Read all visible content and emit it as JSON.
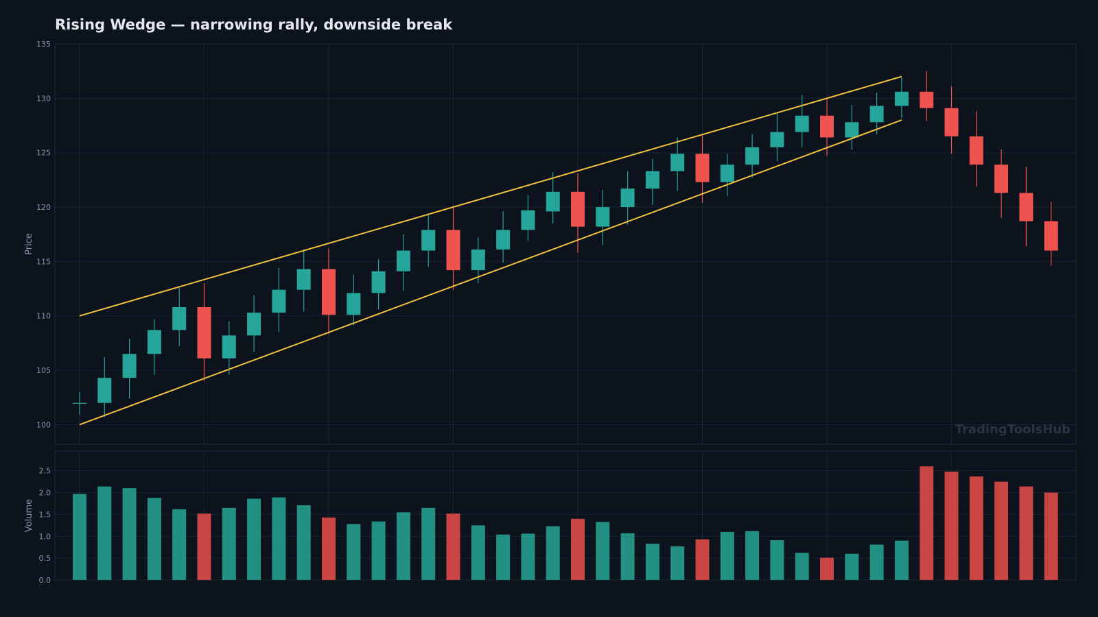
{
  "title": "Rising Wedge — narrowing rally, downside break",
  "watermark": "TradingToolsHub",
  "colors": {
    "background": "#0d131d",
    "bull": "#26a69a",
    "bear": "#ef5350",
    "bull_volume": "#229184",
    "bear_volume": "#c94543",
    "wedge": "#f0c040",
    "grid": "#1a2430",
    "axis_text": "#8b95a2"
  },
  "chart_data": [
    {
      "type": "candlestick",
      "ylabel": "Price",
      "ylim": [
        98.2,
        135
      ],
      "yticks": [
        100,
        105,
        110,
        115,
        120,
        125,
        130,
        135
      ],
      "grid": true,
      "candles": [
        {
          "o": 102.0,
          "h": 103.0,
          "l": 100.9,
          "c": 102.0
        },
        {
          "o": 102.0,
          "h": 106.2,
          "l": 100.7,
          "c": 104.3
        },
        {
          "o": 104.3,
          "h": 107.9,
          "l": 102.4,
          "c": 106.5
        },
        {
          "o": 106.5,
          "h": 109.7,
          "l": 104.6,
          "c": 108.7
        },
        {
          "o": 108.7,
          "h": 112.6,
          "l": 107.2,
          "c": 110.8
        },
        {
          "o": 110.8,
          "h": 113.0,
          "l": 104.0,
          "c": 106.1
        },
        {
          "o": 106.1,
          "h": 109.5,
          "l": 104.6,
          "c": 108.2
        },
        {
          "o": 108.2,
          "h": 111.9,
          "l": 106.7,
          "c": 110.3
        },
        {
          "o": 110.3,
          "h": 114.4,
          "l": 108.5,
          "c": 112.4
        },
        {
          "o": 112.4,
          "h": 116.1,
          "l": 110.4,
          "c": 114.3
        },
        {
          "o": 114.3,
          "h": 116.2,
          "l": 108.3,
          "c": 110.1
        },
        {
          "o": 110.1,
          "h": 113.8,
          "l": 109.1,
          "c": 112.1
        },
        {
          "o": 112.1,
          "h": 115.2,
          "l": 110.6,
          "c": 114.1
        },
        {
          "o": 114.1,
          "h": 117.5,
          "l": 112.3,
          "c": 116.0
        },
        {
          "o": 116.0,
          "h": 119.4,
          "l": 114.5,
          "c": 117.9
        },
        {
          "o": 117.9,
          "h": 120.1,
          "l": 112.4,
          "c": 114.2
        },
        {
          "o": 114.2,
          "h": 117.2,
          "l": 113.0,
          "c": 116.1
        },
        {
          "o": 116.1,
          "h": 119.6,
          "l": 114.9,
          "c": 117.9
        },
        {
          "o": 117.9,
          "h": 121.1,
          "l": 116.9,
          "c": 119.7
        },
        {
          "o": 119.6,
          "h": 123.2,
          "l": 118.5,
          "c": 121.4
        },
        {
          "o": 121.4,
          "h": 123.1,
          "l": 115.8,
          "c": 118.2
        },
        {
          "o": 118.2,
          "h": 121.6,
          "l": 116.5,
          "c": 120.0
        },
        {
          "o": 120.0,
          "h": 123.3,
          "l": 118.4,
          "c": 121.7
        },
        {
          "o": 121.7,
          "h": 124.4,
          "l": 120.2,
          "c": 123.3
        },
        {
          "o": 123.3,
          "h": 126.4,
          "l": 121.5,
          "c": 124.9
        },
        {
          "o": 124.9,
          "h": 126.6,
          "l": 120.4,
          "c": 122.3
        },
        {
          "o": 122.3,
          "h": 124.9,
          "l": 121.0,
          "c": 123.9
        },
        {
          "o": 123.9,
          "h": 126.7,
          "l": 122.7,
          "c": 125.5
        },
        {
          "o": 125.5,
          "h": 128.6,
          "l": 124.2,
          "c": 126.9
        },
        {
          "o": 126.9,
          "h": 130.3,
          "l": 125.5,
          "c": 128.4
        },
        {
          "o": 128.4,
          "h": 130.1,
          "l": 124.7,
          "c": 126.4
        },
        {
          "o": 126.4,
          "h": 129.4,
          "l": 125.3,
          "c": 127.8
        },
        {
          "o": 127.8,
          "h": 130.5,
          "l": 126.7,
          "c": 129.3
        },
        {
          "o": 129.3,
          "h": 131.9,
          "l": 128.2,
          "c": 130.6
        },
        {
          "o": 130.6,
          "h": 132.5,
          "l": 127.9,
          "c": 129.1
        },
        {
          "o": 129.1,
          "h": 131.1,
          "l": 124.9,
          "c": 126.5
        },
        {
          "o": 126.5,
          "h": 128.8,
          "l": 121.9,
          "c": 123.9
        },
        {
          "o": 123.9,
          "h": 125.3,
          "l": 119.0,
          "c": 121.3
        },
        {
          "o": 121.3,
          "h": 123.7,
          "l": 116.4,
          "c": 118.7
        },
        {
          "o": 118.7,
          "h": 120.5,
          "l": 114.6,
          "c": 116.0
        }
      ],
      "wedge_lines": [
        {
          "name": "upper",
          "x": [
            0,
            33
          ],
          "y": [
            110.0,
            132.0
          ]
        },
        {
          "name": "lower",
          "x": [
            0,
            33
          ],
          "y": [
            100.0,
            128.0
          ]
        }
      ]
    },
    {
      "type": "bar",
      "ylabel": "Volume",
      "ylim": [
        0,
        2.95
      ],
      "yticks": [
        0.0,
        0.5,
        1.0,
        1.5,
        2.0,
        2.5
      ],
      "ytick_labels": [
        "0.0",
        "0.5",
        "1.0",
        "1.5",
        "2.0",
        "2.5"
      ],
      "grid": true,
      "values": [
        1.97,
        2.14,
        2.1,
        1.88,
        1.62,
        1.52,
        1.65,
        1.86,
        1.89,
        1.71,
        1.43,
        1.28,
        1.34,
        1.55,
        1.65,
        1.52,
        1.25,
        1.04,
        1.06,
        1.23,
        1.4,
        1.33,
        1.07,
        0.83,
        0.77,
        0.93,
        1.1,
        1.12,
        0.91,
        0.62,
        0.51,
        0.6,
        0.81,
        0.9,
        2.6,
        2.48,
        2.37,
        2.25,
        2.14,
        2.0
      ]
    }
  ]
}
